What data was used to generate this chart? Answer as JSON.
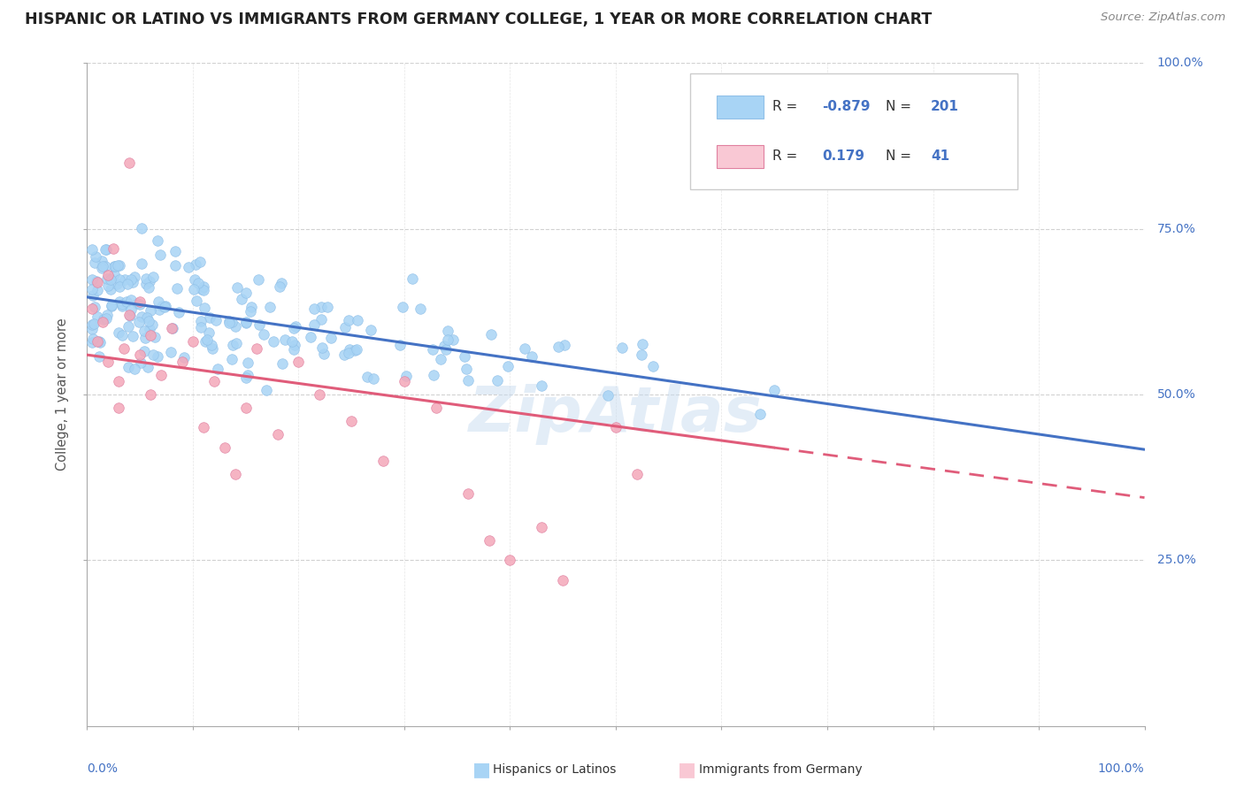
{
  "title": "HISPANIC OR LATINO VS IMMIGRANTS FROM GERMANY COLLEGE, 1 YEAR OR MORE CORRELATION CHART",
  "source": "Source: ZipAtlas.com",
  "ylabel": "College, 1 year or more",
  "ylabel_right_ticks": [
    "100.0%",
    "75.0%",
    "50.0%",
    "25.0%"
  ],
  "legend_blue_R": "-0.879",
  "legend_blue_N": "201",
  "legend_pink_R": "0.179",
  "legend_pink_N": "41",
  "blue_dot_color": "#A8D4F5",
  "blue_line_color": "#4472C4",
  "pink_dot_color": "#F4A7B9",
  "pink_line_color": "#E05C7A",
  "background_color": "#FFFFFF",
  "grid_color": "#DDDDDD",
  "watermark": "ZipAtlas",
  "title_color": "#222222",
  "source_color": "#888888",
  "axis_label_color": "#4472C4",
  "ylabel_color": "#555555"
}
